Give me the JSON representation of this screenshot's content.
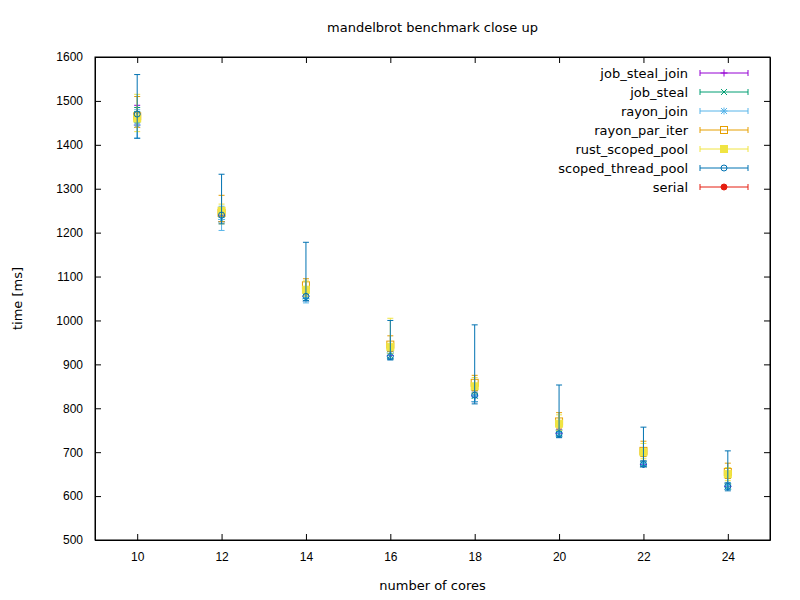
{
  "chart_data": {
    "type": "errorbar",
    "title": "mandelbrot benchmark close up",
    "x_label": "number of cores",
    "y_label": "time [ms]",
    "x": [
      10,
      12,
      14,
      16,
      18,
      20,
      22,
      24
    ],
    "xlim": [
      9,
      25
    ],
    "xticks": [
      10,
      12,
      14,
      16,
      18,
      20,
      22,
      24
    ],
    "ylim": [
      500,
      1600
    ],
    "yticks": [
      500,
      600,
      700,
      800,
      900,
      1000,
      1100,
      1200,
      1300,
      1400,
      1500,
      1600
    ],
    "grid": false,
    "legend": "top-right",
    "series": [
      {
        "name": "job_steal_join",
        "color": "#9400d3",
        "marker": "plus",
        "values": [
          1465,
          1240,
          1055,
          920,
          828,
          743,
          672,
          622
        ],
        "low": [
          1445,
          1225,
          1045,
          912,
          815,
          735,
          667,
          615
        ],
        "high": [
          1490,
          1255,
          1065,
          930,
          840,
          752,
          680,
          630
        ]
      },
      {
        "name": "job_steal",
        "color": "#009e73",
        "marker": "cross",
        "values": [
          1470,
          1240,
          1055,
          920,
          828,
          742,
          672,
          622
        ],
        "low": [
          1450,
          1225,
          1045,
          912,
          815,
          735,
          667,
          615
        ],
        "high": [
          1485,
          1255,
          1068,
          930,
          840,
          750,
          680,
          630
        ]
      },
      {
        "name": "rayon_join",
        "color": "#56b4e9",
        "marker": "star",
        "values": [
          1445,
          1230,
          1050,
          925,
          830,
          745,
          675,
          625
        ],
        "low": [
          1415,
          1205,
          1040,
          912,
          815,
          735,
          668,
          615
        ],
        "high": [
          1480,
          1260,
          1070,
          940,
          845,
          760,
          690,
          640
        ]
      },
      {
        "name": "rayon_par_iter",
        "color": "#e69f00",
        "marker": "square-open",
        "values": [
          1465,
          1245,
          1080,
          945,
          858,
          770,
          703,
          655
        ],
        "low": [
          1440,
          1225,
          1060,
          930,
          840,
          755,
          690,
          640
        ],
        "high": [
          1510,
          1285,
          1095,
          965,
          875,
          790,
          725,
          675
        ]
      },
      {
        "name": "rust_scoped_pool",
        "color": "#f0e442",
        "marker": "square",
        "values": [
          1460,
          1250,
          1070,
          940,
          850,
          765,
          700,
          650
        ],
        "low": [
          1430,
          1220,
          1055,
          925,
          835,
          750,
          685,
          635
        ],
        "high": [
          1515,
          1265,
          1090,
          1005,
          870,
          785,
          720,
          665
        ]
      },
      {
        "name": "scoped_thread_pool",
        "color": "#0072b2",
        "marker": "circle-open",
        "values": [
          1470,
          1240,
          1055,
          918,
          830,
          742,
          672,
          622
        ],
        "low": [
          1415,
          1220,
          1045,
          910,
          810,
          733,
          668,
          612
        ],
        "high": [
          1560,
          1333,
          1178,
          1000,
          990,
          853,
          757,
          703
        ]
      },
      {
        "name": "serial",
        "color": "#e51e10",
        "marker": "circle",
        "values": [
          null,
          null,
          null,
          null,
          null,
          null,
          null,
          null
        ],
        "low": [
          null,
          null,
          null,
          null,
          null,
          null,
          null,
          null
        ],
        "high": [
          null,
          null,
          null,
          null,
          null,
          null,
          null,
          null
        ]
      }
    ]
  }
}
